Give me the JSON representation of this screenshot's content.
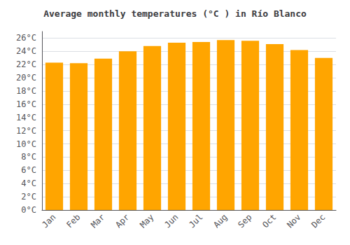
{
  "chart_data": {
    "type": "bar",
    "title": "Average monthly temperatures (°C ) in Río Blanco",
    "categories": [
      "Jan",
      "Feb",
      "Mar",
      "Apr",
      "May",
      "Jun",
      "Jul",
      "Aug",
      "Sep",
      "Oct",
      "Nov",
      "Dec"
    ],
    "values": [
      22.3,
      22.2,
      22.9,
      24.0,
      24.8,
      25.3,
      25.4,
      25.7,
      25.6,
      25.1,
      24.2,
      23.0
    ],
    "color": "#FFA500",
    "ylim": [
      0,
      27
    ],
    "yticks": [
      {
        "value": 0,
        "label": "0°C"
      },
      {
        "value": 2,
        "label": "2°C"
      },
      {
        "value": 4,
        "label": "4°C"
      },
      {
        "value": 6,
        "label": "6°C"
      },
      {
        "value": 8,
        "label": "8°C"
      },
      {
        "value": 10,
        "label": "10°C"
      },
      {
        "value": 12,
        "label": "12°C"
      },
      {
        "value": 14,
        "label": "14°C"
      },
      {
        "value": 16,
        "label": "16°C"
      },
      {
        "value": 18,
        "label": "18°C"
      },
      {
        "value": 20,
        "label": "20°C"
      },
      {
        "value": 22,
        "label": "22°C"
      },
      {
        "value": 24,
        "label": "24°C"
      },
      {
        "value": 26,
        "label": "26°C"
      }
    ],
    "grid": true
  }
}
